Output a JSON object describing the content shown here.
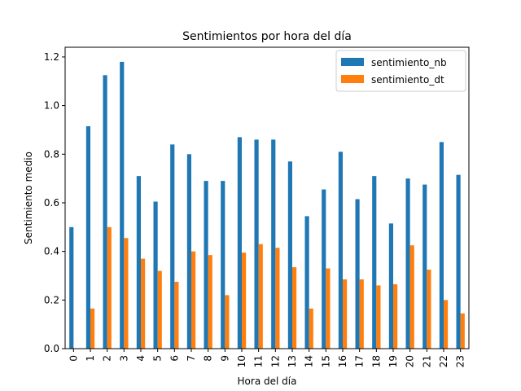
{
  "chart_data": {
    "type": "bar",
    "title": "Sentimientos por hora del día",
    "xlabel": "Hora del día",
    "ylabel": "Sentimiento medio",
    "categories": [
      "0",
      "1",
      "2",
      "3",
      "4",
      "5",
      "6",
      "7",
      "8",
      "9",
      "10",
      "11",
      "12",
      "13",
      "14",
      "15",
      "16",
      "17",
      "18",
      "19",
      "20",
      "21",
      "22",
      "23"
    ],
    "ylim": [
      0,
      1.24
    ],
    "yticks": [
      "0.0",
      "0.2",
      "0.4",
      "0.6",
      "0.8",
      "1.0",
      "1.2"
    ],
    "ytick_values": [
      0,
      0.2,
      0.4,
      0.6,
      0.8,
      1.0,
      1.2
    ],
    "grid": false,
    "legend_position": "top-right",
    "series": [
      {
        "name": "sentimiento_nb",
        "color": "#1f77b4",
        "values": [
          0.5,
          0.915,
          1.125,
          1.18,
          0.71,
          0.605,
          0.84,
          0.8,
          0.69,
          0.69,
          0.87,
          0.86,
          0.86,
          0.77,
          0.545,
          0.655,
          0.81,
          0.615,
          0.71,
          0.515,
          0.7,
          0.675,
          0.85,
          0.715
        ]
      },
      {
        "name": "sentimiento_dt",
        "color": "#ff7f0e",
        "values": [
          0.0,
          0.165,
          0.5,
          0.455,
          0.37,
          0.32,
          0.275,
          0.4,
          0.385,
          0.22,
          0.395,
          0.43,
          0.415,
          0.335,
          0.165,
          0.33,
          0.285,
          0.285,
          0.26,
          0.265,
          0.425,
          0.325,
          0.2,
          0.145
        ]
      }
    ]
  }
}
